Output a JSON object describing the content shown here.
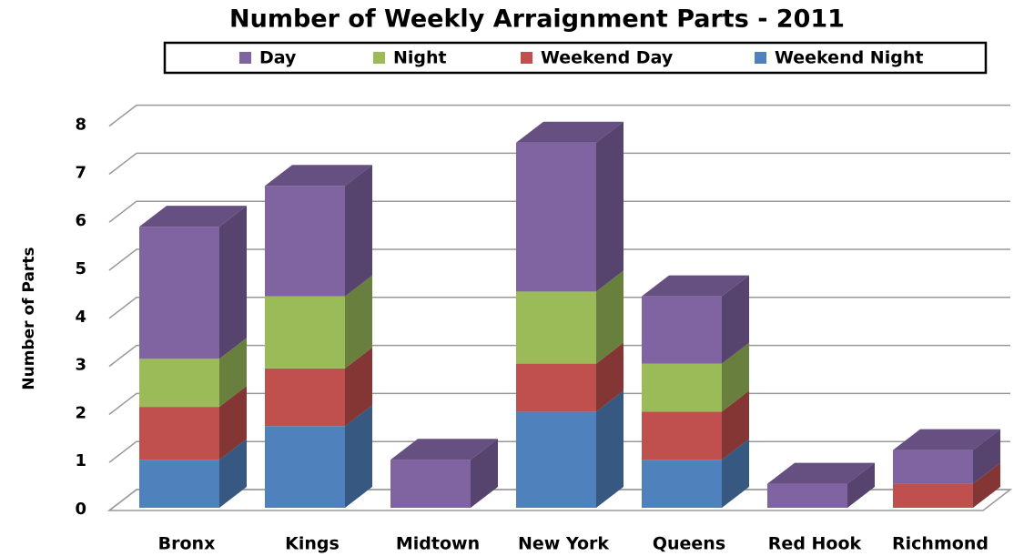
{
  "chart_data": {
    "type": "bar3d_stacked",
    "title": "Number of Weekly Arraignment Parts - 2011",
    "y_axis_label": "Number of Parts",
    "categories": [
      "Bronx",
      "Kings",
      "Midtown",
      "New York",
      "Queens",
      "Red Hook",
      "Richmond"
    ],
    "series": [
      {
        "name": "Day",
        "color": "#8064a2",
        "values": [
          2.75,
          2.3,
          1,
          3.1,
          1.4,
          0.5,
          0.7
        ]
      },
      {
        "name": "Night",
        "color": "#9bbb59",
        "values": [
          1,
          1.5,
          0,
          1.5,
          1,
          0,
          0
        ]
      },
      {
        "name": "Weekend Day",
        "color": "#c0504d",
        "values": [
          1.1,
          1.2,
          0,
          1,
          1,
          0,
          0.5
        ]
      },
      {
        "name": "Weekend Night",
        "color": "#4f81bd",
        "values": [
          1,
          1.7,
          0,
          2,
          1,
          0,
          0
        ]
      }
    ],
    "ylim": [
      0,
      8
    ],
    "yticks": [
      0,
      1,
      2,
      3,
      4,
      5,
      6,
      7,
      8
    ],
    "grid": true,
    "legend": "top"
  }
}
